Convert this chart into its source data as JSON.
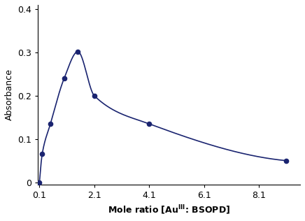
{
  "x": [
    0.1,
    0.2,
    0.5,
    1.0,
    1.5,
    2.1,
    4.1,
    9.1
  ],
  "y": [
    0.0,
    0.065,
    0.135,
    0.24,
    0.302,
    0.2,
    0.135,
    0.05
  ],
  "line_color": "#1a2470",
  "marker": "o",
  "marker_size": 4.5,
  "marker_color": "#1a2470",
  "ylabel": "Absorbance",
  "xlim": [
    0.05,
    9.6
  ],
  "ylim": [
    -0.005,
    0.41
  ],
  "xticks": [
    0.1,
    2.1,
    4.1,
    6.1,
    8.1
  ],
  "xtick_labels": [
    "0.1",
    "2.1",
    "4.1",
    "6.1",
    "8.1"
  ],
  "yticks": [
    0,
    0.1,
    0.2,
    0.3,
    0.4
  ],
  "ytick_labels": [
    "0",
    "0.1",
    "0.2",
    "0.3",
    "0.4"
  ],
  "background_color": "#ffffff",
  "axis_fontsize": 9,
  "tick_fontsize": 9
}
